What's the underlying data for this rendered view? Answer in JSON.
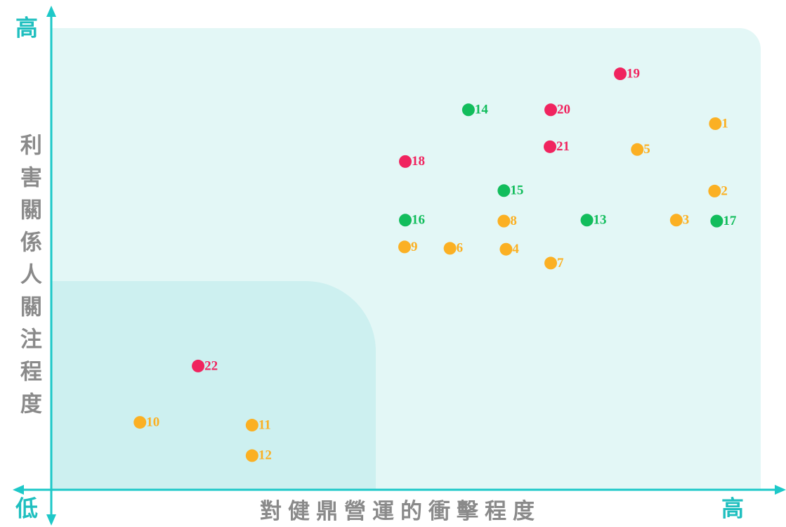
{
  "chart_data": {
    "type": "scatter",
    "y_label": "利害關係人關注程度",
    "x_label": "對健鼎營運的衝擊程度",
    "y_high": "高",
    "x_low": "低",
    "x_high": "高",
    "xlim": [
      0,
      100
    ],
    "ylim": [
      0,
      100
    ],
    "points": [
      {
        "label": "1",
        "x": 93.6,
        "y": 79.3,
        "color": "#fbb023"
      },
      {
        "label": "2",
        "x": 93.5,
        "y": 64.7,
        "color": "#fbb023"
      },
      {
        "label": "3",
        "x": 88.1,
        "y": 58.4,
        "color": "#fbb023"
      },
      {
        "label": "4",
        "x": 64.1,
        "y": 52.1,
        "color": "#fbb023"
      },
      {
        "label": "5",
        "x": 82.6,
        "y": 73.7,
        "color": "#fbb023"
      },
      {
        "label": "6",
        "x": 56.2,
        "y": 52.3,
        "color": "#fbb023"
      },
      {
        "label": "7",
        "x": 70.4,
        "y": 49.1,
        "color": "#fbb023"
      },
      {
        "label": "8",
        "x": 63.8,
        "y": 58.2,
        "color": "#fbb023"
      },
      {
        "label": "9",
        "x": 49.8,
        "y": 52.6,
        "color": "#fbb023"
      },
      {
        "label": "10",
        "x": 12.5,
        "y": 14.6,
        "color": "#fbb023"
      },
      {
        "label": "11",
        "x": 28.3,
        "y": 14.0,
        "color": "#fbb023"
      },
      {
        "label": "12",
        "x": 28.3,
        "y": 7.4,
        "color": "#fbb023"
      },
      {
        "label": "13",
        "x": 75.5,
        "y": 58.4,
        "color": "#12bd5c"
      },
      {
        "label": "14",
        "x": 58.8,
        "y": 82.3,
        "color": "#12bd5c"
      },
      {
        "label": "15",
        "x": 63.8,
        "y": 64.8,
        "color": "#12bd5c"
      },
      {
        "label": "16",
        "x": 49.9,
        "y": 58.4,
        "color": "#12bd5c"
      },
      {
        "label": "17",
        "x": 93.8,
        "y": 58.2,
        "color": "#12bd5c"
      },
      {
        "label": "18",
        "x": 49.9,
        "y": 71.1,
        "color": "#f0245f"
      },
      {
        "label": "19",
        "x": 80.2,
        "y": 90.1,
        "color": "#f0245f"
      },
      {
        "label": "20",
        "x": 70.4,
        "y": 82.3,
        "color": "#f0245f"
      },
      {
        "label": "21",
        "x": 70.3,
        "y": 74.3,
        "color": "#f0245f"
      },
      {
        "label": "22",
        "x": 20.7,
        "y": 26.8,
        "color": "#f0245f"
      }
    ]
  }
}
